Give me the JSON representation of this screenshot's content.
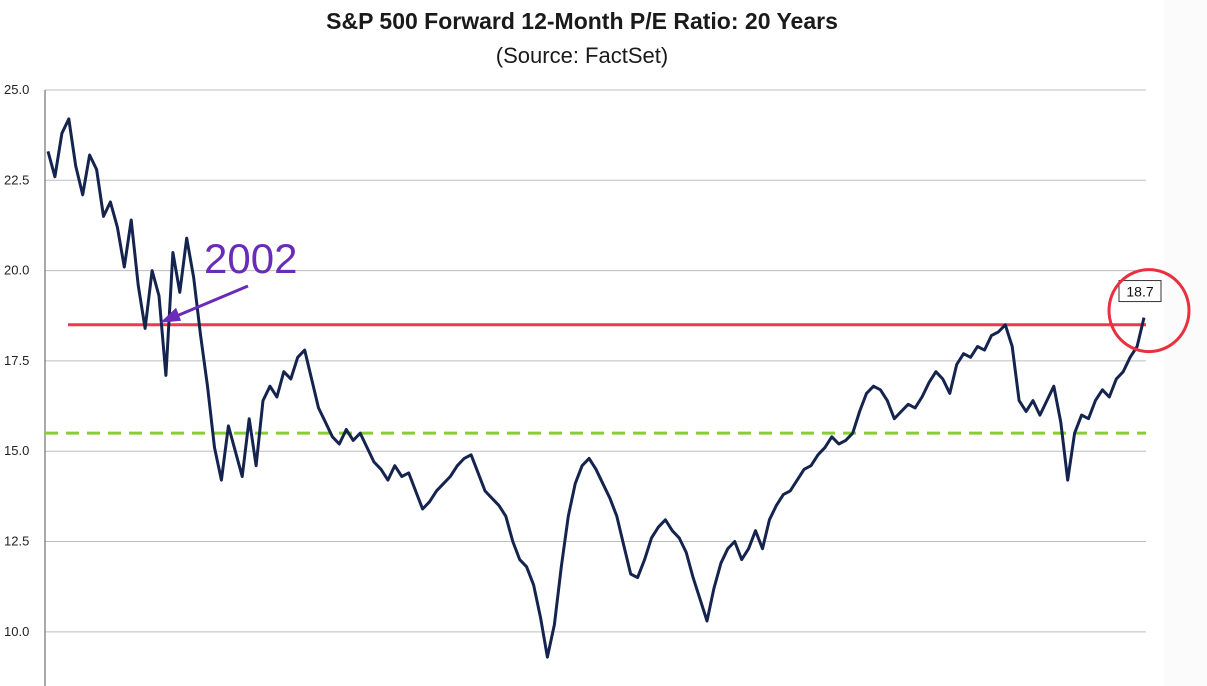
{
  "chart_data": {
    "type": "line",
    "title": "S&P 500 Forward 12-Month P/E Ratio: 20 Years",
    "subtitle": "(Source: FactSet)",
    "ylim": [
      8.5,
      25.0
    ],
    "yticks": [
      "25.0",
      "22.5",
      "20.0",
      "17.5",
      "15.0",
      "12.5",
      "10.0"
    ],
    "ytick_values": [
      25.0,
      22.5,
      20.0,
      17.5,
      15.0,
      12.5,
      10.0
    ],
    "grid": true,
    "series": [
      {
        "color": "#14244f",
        "values": [
          23.3,
          22.6,
          23.8,
          24.2,
          22.9,
          22.1,
          23.2,
          22.8,
          21.5,
          21.9,
          21.2,
          20.1,
          21.4,
          19.6,
          18.4,
          20.0,
          19.3,
          17.1,
          20.5,
          19.4,
          20.9,
          19.8,
          18.2,
          16.8,
          15.1,
          14.2,
          15.7,
          15.0,
          14.3,
          15.9,
          14.6,
          16.4,
          16.8,
          16.5,
          17.2,
          17.0,
          17.6,
          17.8,
          17.0,
          16.2,
          15.8,
          15.4,
          15.2,
          15.6,
          15.3,
          15.5,
          15.1,
          14.7,
          14.5,
          14.2,
          14.6,
          14.3,
          14.4,
          13.9,
          13.4,
          13.6,
          13.9,
          14.1,
          14.3,
          14.6,
          14.8,
          14.9,
          14.4,
          13.9,
          13.7,
          13.5,
          13.2,
          12.5,
          12.0,
          11.8,
          11.3,
          10.4,
          9.3,
          10.2,
          11.8,
          13.2,
          14.1,
          14.6,
          14.8,
          14.5,
          14.1,
          13.7,
          13.2,
          12.4,
          11.6,
          11.5,
          12.0,
          12.6,
          12.9,
          13.1,
          12.8,
          12.6,
          12.2,
          11.5,
          10.9,
          10.3,
          11.2,
          11.9,
          12.3,
          12.5,
          12.0,
          12.3,
          12.8,
          12.3,
          13.1,
          13.5,
          13.8,
          13.9,
          14.2,
          14.5,
          14.6,
          14.9,
          15.1,
          15.4,
          15.2,
          15.3,
          15.5,
          16.1,
          16.6,
          16.8,
          16.7,
          16.4,
          15.9,
          16.1,
          16.3,
          16.2,
          16.5,
          16.9,
          17.2,
          17.0,
          16.6,
          17.4,
          17.7,
          17.6,
          17.9,
          17.8,
          18.2,
          18.3,
          18.5,
          17.9,
          16.4,
          16.1,
          16.4,
          16.0,
          16.4,
          16.8,
          15.8,
          14.2,
          15.5,
          16.0,
          15.9,
          16.4,
          16.7,
          16.5,
          17.0,
          17.2,
          17.6,
          17.9,
          18.7
        ]
      }
    ],
    "reference_lines": [
      {
        "y": 18.5,
        "color": "#f0394f",
        "style": "solid"
      },
      {
        "y": 15.5,
        "color": "#8acd32",
        "style": "dashed"
      }
    ],
    "annotations": [
      {
        "text": "2002",
        "color": "#6a2bb8",
        "arrow_to_index": 15
      },
      {
        "text": "18.7",
        "type": "value-callout",
        "circle_color": "#e8303f",
        "point_index": 158
      }
    ]
  }
}
